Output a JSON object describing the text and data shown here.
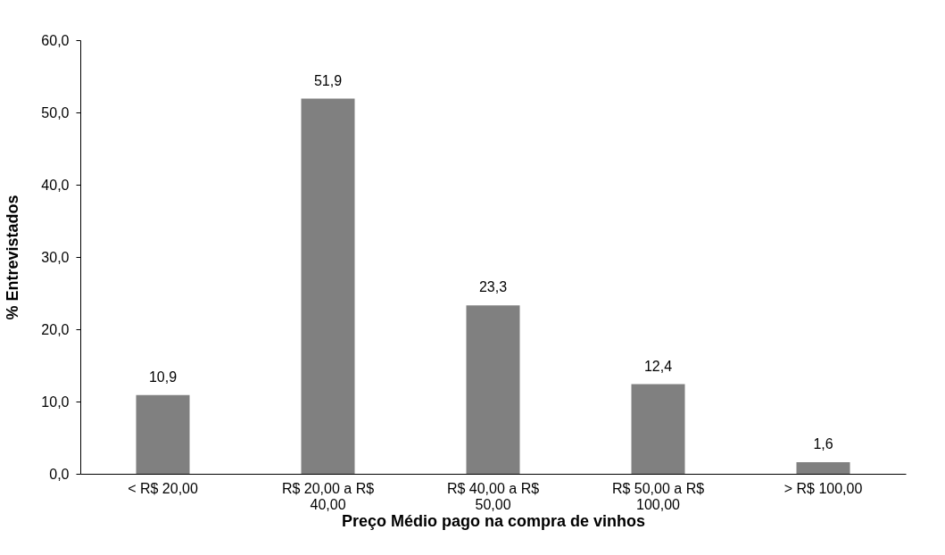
{
  "chart_data": {
    "type": "bar",
    "xlabel": "Preço Médio pago na compra de vinhos",
    "ylabel": "% Entrevistados",
    "categories": [
      "< R$ 20,00",
      "R$ 20,00 a R$ 40,00",
      "R$ 40,00 a R$ 50,00",
      "R$ 50,00 a R$ 100,00",
      "> R$ 100,00"
    ],
    "values": [
      10.9,
      51.9,
      23.3,
      12.4,
      1.6
    ],
    "value_labels": [
      "10,9",
      "51,9",
      "23,3",
      "12,4",
      "1,6"
    ],
    "color": "#808080",
    "ylim": [
      0,
      60
    ],
    "yticks": [
      {
        "value": 0,
        "label": "0,0"
      },
      {
        "value": 10,
        "label": "10,0"
      },
      {
        "value": 20,
        "label": "20,0"
      },
      {
        "value": 30,
        "label": "30,0"
      },
      {
        "value": 40,
        "label": "40,0"
      },
      {
        "value": 50,
        "label": "50,0"
      },
      {
        "value": 60,
        "label": "60,0"
      }
    ],
    "grid": false
  }
}
